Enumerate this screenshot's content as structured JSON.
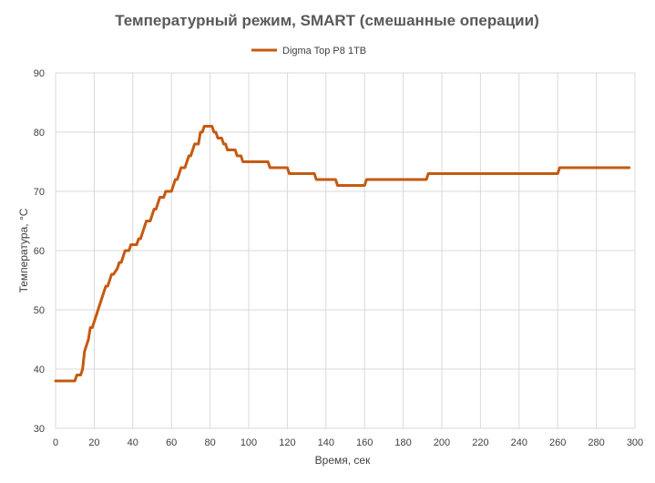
{
  "chart_data": {
    "type": "line",
    "title": "Температурный режим, SMART (смешанные операции)",
    "xlabel": "Время,  сек",
    "ylabel": "Температура, °С",
    "xlim": [
      0,
      300
    ],
    "ylim": [
      30,
      90
    ],
    "xticks": [
      0,
      20,
      40,
      60,
      80,
      100,
      120,
      140,
      160,
      180,
      200,
      220,
      240,
      260,
      280,
      300
    ],
    "yticks": [
      30,
      40,
      50,
      60,
      70,
      80,
      90
    ],
    "grid": "vertical-and-horizontal",
    "legend_position": "top",
    "series": [
      {
        "name": "Digma Top P8 1TB",
        "color": "#C55A11",
        "x": [
          0,
          9,
          10,
          11,
          13,
          14,
          15,
          16,
          17,
          18,
          19,
          20,
          25,
          26,
          27,
          28,
          29,
          30,
          32,
          33,
          34,
          35,
          36,
          37,
          38,
          39,
          40,
          41,
          42,
          43,
          44,
          45,
          46,
          47,
          48,
          49,
          50,
          51,
          52,
          53,
          54,
          55,
          56,
          57,
          58,
          59,
          60,
          61,
          62,
          63,
          64,
          65,
          66,
          67,
          68,
          69,
          70,
          71,
          72,
          73,
          74,
          75,
          76,
          77,
          78,
          79,
          80,
          81,
          82,
          83,
          84,
          85,
          86,
          87,
          88,
          89,
          90,
          91,
          92,
          93,
          94,
          95,
          96,
          97,
          98,
          99,
          100,
          110,
          111,
          120,
          121,
          134,
          135,
          145,
          146,
          160,
          161,
          192,
          193,
          260,
          261,
          297
        ],
        "values": [
          38,
          38,
          38,
          39,
          39,
          40,
          43,
          44,
          45,
          47,
          47,
          48,
          53,
          54,
          54,
          55,
          56,
          56,
          57,
          58,
          58,
          59,
          60,
          60,
          60,
          61,
          61,
          61,
          61,
          62,
          62,
          63,
          64,
          65,
          65,
          65,
          66,
          67,
          67,
          68,
          69,
          69,
          69,
          70,
          70,
          70,
          70,
          71,
          72,
          72,
          73,
          74,
          74,
          74,
          75,
          76,
          76,
          77,
          78,
          78,
          78,
          80,
          80,
          81,
          81,
          81,
          81,
          81,
          80,
          80,
          79,
          79,
          79,
          78,
          78,
          77,
          77,
          77,
          77,
          77,
          76,
          76,
          76,
          75,
          75,
          75,
          75,
          75,
          74,
          74,
          73,
          73,
          72,
          72,
          71,
          71,
          72,
          72,
          73,
          73,
          74,
          74
        ]
      }
    ]
  }
}
